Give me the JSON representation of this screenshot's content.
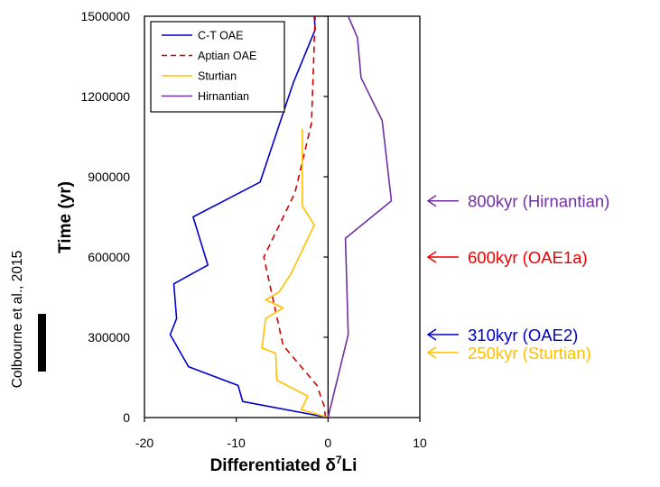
{
  "chart_data": {
    "type": "line",
    "xlabel": "Differentiated δ",
    "xlabel_sup": "7",
    "xlabel_suffix": "Li",
    "ylabel": "Time (yr)",
    "xlim": [
      -20,
      10
    ],
    "ylim": [
      0,
      1500000
    ],
    "xticks": [
      "-20",
      "-10",
      "0",
      "10"
    ],
    "yticks": [
      "0",
      "300000",
      "600000",
      "900000",
      "1200000",
      "1500000"
    ],
    "legend_position": "top-left",
    "series": [
      {
        "name": "C-T OAE",
        "color": "#0000cc",
        "dash": "solid",
        "points": [
          [
            0,
            0
          ],
          [
            -9.3,
            60000
          ],
          [
            -9.8,
            120000
          ],
          [
            -15.2,
            190000
          ],
          [
            -17.2,
            310000
          ],
          [
            -16.5,
            370000
          ],
          [
            -16.8,
            500000
          ],
          [
            -13.1,
            570000
          ],
          [
            -14.7,
            750000
          ],
          [
            -7.4,
            880000
          ],
          [
            -3.8,
            1250000
          ],
          [
            -1.4,
            1450000
          ],
          [
            -1.5,
            1500000
          ]
        ]
      },
      {
        "name": "Aptian OAE",
        "color": "#cc0000",
        "dash": "dashed",
        "points": [
          [
            -0.3,
            0
          ],
          [
            -0.4,
            40000
          ],
          [
            -1.2,
            120000
          ],
          [
            -4.9,
            270000
          ],
          [
            -7.0,
            600000
          ],
          [
            -3.6,
            840000
          ],
          [
            -1.8,
            1100000
          ],
          [
            -1.4,
            1500000
          ]
        ]
      },
      {
        "name": "Sturtian",
        "color": "#ffc000",
        "dash": "solid",
        "points": [
          [
            0,
            0
          ],
          [
            -2.9,
            30000
          ],
          [
            -2.2,
            80000
          ],
          [
            -5.6,
            140000
          ],
          [
            -5.7,
            240000
          ],
          [
            -7.2,
            260000
          ],
          [
            -6.8,
            370000
          ],
          [
            -4.9,
            410000
          ],
          [
            -6.8,
            440000
          ],
          [
            -5.3,
            470000
          ],
          [
            -4.0,
            540000
          ],
          [
            -1.5,
            720000
          ],
          [
            -2.8,
            790000
          ],
          [
            -2.8,
            1080000
          ]
        ]
      },
      {
        "name": "Hirnantian",
        "color": "#7030a0",
        "dash": "solid",
        "points": [
          [
            0,
            0
          ],
          [
            2.2,
            310000
          ],
          [
            1.9,
            670000
          ],
          [
            6.9,
            810000
          ],
          [
            5.9,
            1110000
          ],
          [
            3.6,
            1270000
          ],
          [
            3.2,
            1420000
          ],
          [
            2.2,
            1500000
          ]
        ]
      }
    ],
    "annotations": [
      {
        "text": "800kyr (Hirnantian)",
        "color": "#7030a0",
        "y": 810000
      },
      {
        "text": "600kyr (OAE1a)",
        "color": "#ee0000",
        "y": 600000
      },
      {
        "text": "310kyr (OAE2)",
        "color": "#0000cc",
        "y": 310000
      },
      {
        "text": "250kyr (Sturtian)",
        "color": "#ffc000",
        "y": 250000
      }
    ]
  },
  "credit": "Colbourne et al., 2015"
}
